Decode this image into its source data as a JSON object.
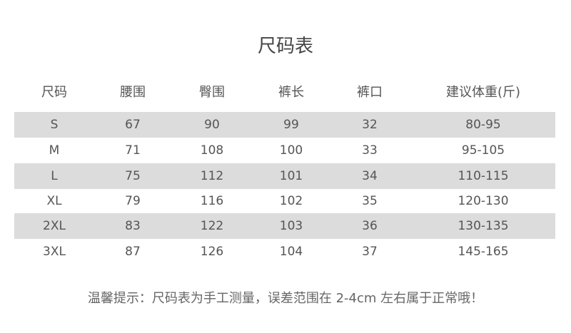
{
  "title": "尺码表",
  "headers": [
    "尺码",
    "腰围",
    "臀围",
    "裤长",
    "裤口",
    "建议体重(斤)"
  ],
  "rows": [
    [
      "S",
      "67",
      "90",
      "99",
      "32",
      "80-95"
    ],
    [
      "M",
      "71",
      "108",
      "100",
      "33",
      "95-105"
    ],
    [
      "L",
      "75",
      "112",
      "101",
      "34",
      "110-115"
    ],
    [
      "XL",
      "79",
      "116",
      "102",
      "35",
      "120-130"
    ],
    [
      "2XL",
      "83",
      "122",
      "103",
      "36",
      "130-135"
    ],
    [
      "3XL",
      "87",
      "126",
      "104",
      "37",
      "145-165"
    ]
  ],
  "footer": "温馨提示：尺码表为手工测量，误差范围在 2-4cm 左右属于正常哦！",
  "colors": {
    "row_shade": "#dcdcdc",
    "text": "#555555"
  }
}
